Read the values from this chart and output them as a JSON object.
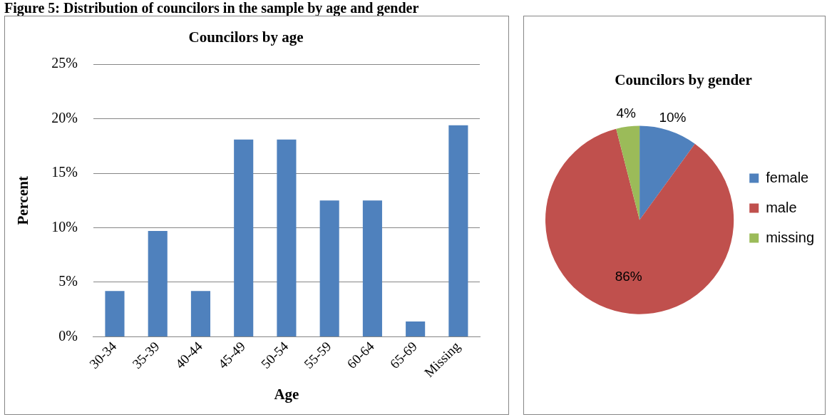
{
  "chart_data": [
    {
      "type": "bar",
      "title": "Councilors by age",
      "xlabel": "Age",
      "ylabel": "Percent",
      "annotations": [
        "Figure 5: Distribution of councilors in the sample by age and gender"
      ],
      "categories": [
        "30-34",
        "35-39",
        "40-44",
        "45-49",
        "50-54",
        "55-59",
        "60-64",
        "65-69",
        "Missing"
      ],
      "values": [
        4.2,
        9.7,
        4.2,
        18.1,
        18.1,
        12.5,
        12.5,
        1.4,
        19.4
      ],
      "color": "#4f81bd",
      "ylim": [
        0,
        25
      ],
      "yticks": [
        {
          "value": 0,
          "label": "0%"
        },
        {
          "value": 5,
          "label": "5%"
        },
        {
          "value": 10,
          "label": "10%"
        },
        {
          "value": 15,
          "label": "15%"
        },
        {
          "value": 20,
          "label": "20%"
        },
        {
          "value": 25,
          "label": "25%"
        }
      ],
      "grid": "y",
      "legend": false
    },
    {
      "type": "pie",
      "title": "Councilors by gender",
      "categories": [
        "female",
        "male",
        "missing"
      ],
      "values": [
        10,
        86,
        4
      ],
      "colors": [
        "#4f81bd",
        "#c0504d",
        "#9bbb59"
      ],
      "value_labels": [
        "10%",
        "86%",
        "4%"
      ],
      "legend": "right"
    }
  ]
}
